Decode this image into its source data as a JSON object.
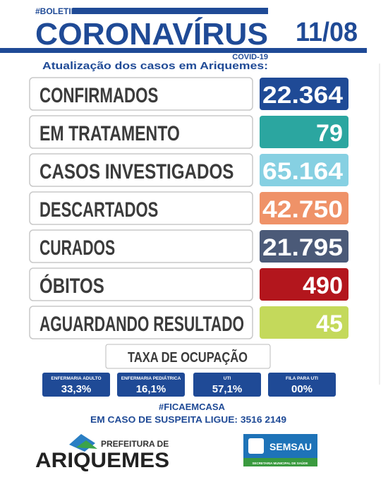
{
  "header": {
    "tag": "#BOLETIM",
    "title": "CORONAVÍRUS",
    "subtitle": "COVID-19",
    "date": "11/08",
    "intro": "Atualização dos casos em Ariquemes:"
  },
  "rows": [
    {
      "label": "CONFIRMADOS",
      "value": "22.364",
      "color": "#1f4a96"
    },
    {
      "label": "EM TRATAMENTO",
      "value": "79",
      "color": "#2ba6a0"
    },
    {
      "label": "CASOS INVESTIGADOS",
      "value": "65.164",
      "color": "#86d0e2"
    },
    {
      "label": "DESCARTADOS",
      "value": "42.750",
      "color": "#ef9268"
    },
    {
      "label": "CURADOS",
      "value": "21.795",
      "color": "#4b5a78"
    },
    {
      "label": "ÓBITOS",
      "value": "490",
      "color": "#b3161d"
    },
    {
      "label": "AGUARDANDO RESULTADO",
      "value": "45",
      "color": "#c4d95b"
    }
  ],
  "occupancy": {
    "title": "TAXA DE OCUPAÇÃO",
    "items": [
      {
        "label": "ENFERMARIA ADULTO",
        "value": "33,3%"
      },
      {
        "label": "ENFERMARIA PEDIÁTRICA",
        "value": "16,1%"
      },
      {
        "label": "UTI",
        "value": "57,1%"
      },
      {
        "label": "FILA PARA UTI",
        "value": "00%"
      }
    ]
  },
  "footer": {
    "hashtag": "#FICAEMCASA",
    "phone": "EM CASO DE SUSPEITA LIGUE: 3516 2149"
  },
  "logos": {
    "city_prefix": "PREFEITURA DE",
    "city": "ARIQUEMES",
    "agency": "SEMSAU",
    "agency_full": "SECRETARIA MUNICIPAL DE SAÚDE"
  }
}
